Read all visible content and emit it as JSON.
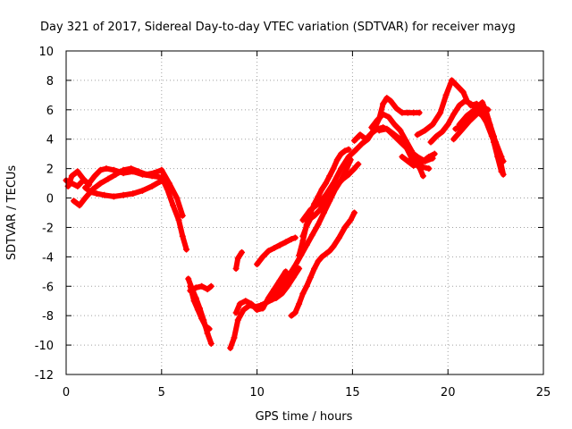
{
  "chart_data": {
    "type": "scatter",
    "title": "Day 321 of 2017, Sidereal Day-to-day VTEC variation (SDTVAR) for receiver mayg",
    "xlabel": "GPS time / hours",
    "ylabel": "SDTVAR / TECUs",
    "xlim": [
      0,
      25
    ],
    "ylim": [
      -12,
      10
    ],
    "xticks": [
      "0",
      "5",
      "10",
      "15",
      "20",
      "25"
    ],
    "yticks": [
      "-12",
      "-10",
      "-8",
      "-6",
      "-4",
      "-2",
      "0",
      "2",
      "4",
      "6",
      "8",
      "10"
    ],
    "grid": true,
    "marker": "+",
    "color": "#ff0000",
    "series": [
      {
        "x": [
          0.0,
          0.3,
          0.6,
          0.9,
          1.2,
          1.5,
          1.8,
          2.1,
          2.5,
          3.0,
          3.5,
          4.0,
          4.5,
          5.0,
          5.3,
          5.6,
          5.9,
          6.1,
          6.3
        ],
        "y": [
          1.2,
          1.0,
          0.8,
          1.2,
          1.0,
          1.5,
          1.9,
          2.0,
          1.9,
          1.7,
          1.8,
          1.6,
          1.5,
          1.4,
          0.6,
          -0.5,
          -1.5,
          -2.6,
          -3.5
        ]
      },
      {
        "x": [
          0.4,
          0.7,
          1.0,
          1.4,
          1.8,
          2.2,
          2.6,
          3.0,
          3.4,
          3.8,
          4.2,
          4.6,
          5.0,
          5.4,
          5.8,
          6.1
        ],
        "y": [
          -0.2,
          -0.5,
          0.0,
          0.6,
          1.0,
          1.3,
          1.6,
          1.9,
          2.0,
          1.8,
          1.6,
          1.7,
          1.9,
          1.0,
          0.0,
          -1.2
        ]
      },
      {
        "x": [
          1.0,
          1.3,
          1.6,
          2.0,
          2.5,
          3.0,
          3.5,
          4.0,
          4.5,
          4.9,
          5.2
        ],
        "y": [
          0.7,
          0.4,
          0.3,
          0.2,
          0.1,
          0.2,
          0.3,
          0.5,
          0.8,
          1.1,
          1.2
        ]
      },
      {
        "x": [
          0.1,
          0.3,
          0.6,
          0.9,
          1.2
        ],
        "y": [
          0.8,
          1.5,
          1.8,
          1.3,
          0.9
        ]
      },
      {
        "x": [
          6.4,
          6.6,
          6.8,
          7.0,
          7.2,
          7.4,
          7.6
        ],
        "y": [
          -5.5,
          -6.2,
          -6.8,
          -7.5,
          -8.3,
          -9.2,
          -9.9
        ]
      },
      {
        "x": [
          6.5,
          6.8,
          7.1,
          7.4,
          7.6
        ],
        "y": [
          -6.3,
          -6.1,
          -6.0,
          -6.2,
          -6.0
        ]
      },
      {
        "x": [
          6.5,
          6.7,
          6.9,
          7.1,
          7.3,
          7.5
        ],
        "y": [
          -6.0,
          -7.0,
          -7.6,
          -8.2,
          -8.7,
          -8.9
        ]
      },
      {
        "x": [
          8.6,
          8.8,
          9.0,
          9.3,
          9.6,
          9.9,
          10.2,
          10.5,
          10.8,
          11.0,
          11.3,
          11.6,
          11.9,
          12.2
        ],
        "y": [
          -10.2,
          -9.5,
          -8.3,
          -7.6,
          -7.3,
          -7.4,
          -7.3,
          -7.1,
          -6.9,
          -6.8,
          -6.5,
          -6.0,
          -5.4,
          -4.8
        ]
      },
      {
        "x": [
          8.9,
          9.1,
          9.4,
          9.7,
          10.0,
          10.3,
          10.6,
          10.9,
          11.2,
          11.5
        ],
        "y": [
          -7.8,
          -7.2,
          -7.0,
          -7.2,
          -7.6,
          -7.5,
          -6.8,
          -6.2,
          -5.6,
          -5.0
        ]
      },
      {
        "x": [
          8.9,
          9.0,
          9.2
        ],
        "y": [
          -4.8,
          -4.1,
          -3.7
        ]
      },
      {
        "x": [
          10.0,
          10.3,
          10.6,
          10.9,
          11.2,
          11.5,
          11.8,
          12.0
        ],
        "y": [
          -4.5,
          -4.0,
          -3.6,
          -3.4,
          -3.2,
          -3.0,
          -2.8,
          -2.7
        ]
      },
      {
        "x": [
          11.8,
          12.0,
          12.2,
          12.4,
          12.6,
          12.8,
          13.0,
          13.2,
          13.4,
          13.6,
          13.8,
          14.0,
          14.3,
          14.6,
          14.9,
          15.1
        ],
        "y": [
          -8.0,
          -7.8,
          -7.2,
          -6.5,
          -6.0,
          -5.4,
          -4.8,
          -4.3,
          -4.0,
          -3.8,
          -3.6,
          -3.3,
          -2.7,
          -2.0,
          -1.5,
          -1.0
        ]
      },
      {
        "x": [
          10.8,
          11.1,
          11.4,
          11.7,
          12.0,
          12.3,
          12.6,
          12.9,
          13.2,
          13.5,
          13.8,
          14.1,
          14.4,
          14.7,
          14.9
        ],
        "y": [
          -6.8,
          -6.3,
          -5.8,
          -5.2,
          -4.6,
          -3.9,
          -3.2,
          -2.5,
          -1.8,
          -1.0,
          -0.2,
          0.6,
          1.2,
          2.0,
          2.6
        ]
      },
      {
        "x": [
          12.2,
          12.4,
          12.6,
          12.8,
          13.0,
          13.2,
          13.4,
          13.6,
          13.8,
          14.0,
          14.2,
          14.4,
          14.6,
          14.8
        ],
        "y": [
          -3.9,
          -2.9,
          -1.8,
          -1.0,
          -0.4,
          0.1,
          0.6,
          1.0,
          1.5,
          2.0,
          2.6,
          3.0,
          3.2,
          3.3
        ]
      },
      {
        "x": [
          12.4,
          12.6,
          12.8,
          13.0,
          13.3,
          13.6,
          13.9,
          14.2,
          14.5,
          14.8,
          15.1,
          15.3
        ],
        "y": [
          -2.6,
          -1.9,
          -1.4,
          -1.2,
          -0.8,
          -0.2,
          0.4,
          0.9,
          1.3,
          1.6,
          2.0,
          2.3
        ]
      },
      {
        "x": [
          12.4,
          12.8,
          13.2,
          13.6,
          14.0,
          14.4,
          14.8,
          15.2,
          15.5,
          15.8,
          16.1,
          16.4,
          16.6,
          16.8,
          17.0,
          17.3,
          17.6,
          17.9,
          18.2,
          18.5
        ],
        "y": [
          -1.5,
          -0.8,
          -0.4,
          0.2,
          1.0,
          2.0,
          2.8,
          3.3,
          3.7,
          4.0,
          4.6,
          5.4,
          6.4,
          6.8,
          6.6,
          6.1,
          5.8,
          5.8,
          5.8,
          5.8
        ]
      },
      {
        "x": [
          15.1,
          15.4,
          15.7,
          16.0,
          16.3,
          16.6,
          16.9,
          17.2,
          17.5,
          17.8,
          18.1,
          18.4,
          18.7,
          19.0
        ],
        "y": [
          3.9,
          4.3,
          4.0,
          4.4,
          4.7,
          4.8,
          4.6,
          4.3,
          4.0,
          3.5,
          2.7,
          2.2,
          2.1,
          2.0
        ]
      },
      {
        "x": [
          16.0,
          16.3,
          16.6,
          16.9,
          17.2,
          17.5,
          17.8,
          18.1,
          18.4,
          18.7
        ],
        "y": [
          4.8,
          5.3,
          5.7,
          5.5,
          5.0,
          4.6,
          3.9,
          3.2,
          2.4,
          1.5
        ]
      },
      {
        "x": [
          16.4,
          16.8,
          17.2,
          17.6,
          18.0,
          18.4,
          18.8,
          19.2
        ],
        "y": [
          4.6,
          4.7,
          4.2,
          3.7,
          3.2,
          2.8,
          2.5,
          2.7
        ]
      },
      {
        "x": [
          17.6,
          17.9,
          18.2,
          18.6,
          19.0,
          19.3
        ],
        "y": [
          2.8,
          2.5,
          2.2,
          2.4,
          2.8,
          3.0
        ]
      },
      {
        "x": [
          18.4,
          18.8,
          19.2,
          19.6,
          19.9,
          20.2,
          20.5,
          20.8,
          21.0
        ],
        "y": [
          4.3,
          4.6,
          5.0,
          5.8,
          7.0,
          8.0,
          7.6,
          7.2,
          6.6
        ]
      },
      {
        "x": [
          19.1,
          19.4,
          19.7,
          20.0,
          20.3,
          20.6,
          20.9,
          21.2,
          21.6,
          22.0,
          22.3,
          22.6,
          22.9
        ],
        "y": [
          3.8,
          4.2,
          4.5,
          5.0,
          5.7,
          6.3,
          6.6,
          6.4,
          6.0,
          5.2,
          4.2,
          3.2,
          2.5
        ]
      },
      {
        "x": [
          20.4,
          20.8,
          21.2,
          21.6,
          21.9,
          22.2,
          22.5,
          22.8
        ],
        "y": [
          4.7,
          5.0,
          5.5,
          5.8,
          5.5,
          4.8,
          3.8,
          2.8
        ]
      },
      {
        "x": [
          20.6,
          21.0,
          21.4,
          21.8,
          22.0,
          22.2,
          22.4,
          22.6,
          22.8
        ],
        "y": [
          5.0,
          5.6,
          6.0,
          6.5,
          5.9,
          5.0,
          3.8,
          2.8,
          1.8
        ]
      },
      {
        "x": [
          20.3,
          20.7,
          21.1,
          21.5,
          21.8,
          22.1
        ],
        "y": [
          4.0,
          4.6,
          5.2,
          5.7,
          6.2,
          6.0
        ]
      },
      {
        "x": [
          21.2,
          21.5,
          21.8,
          22.1,
          22.4,
          22.7,
          22.9
        ],
        "y": [
          6.3,
          6.4,
          6.0,
          5.4,
          4.2,
          2.8,
          1.6
        ]
      }
    ]
  }
}
